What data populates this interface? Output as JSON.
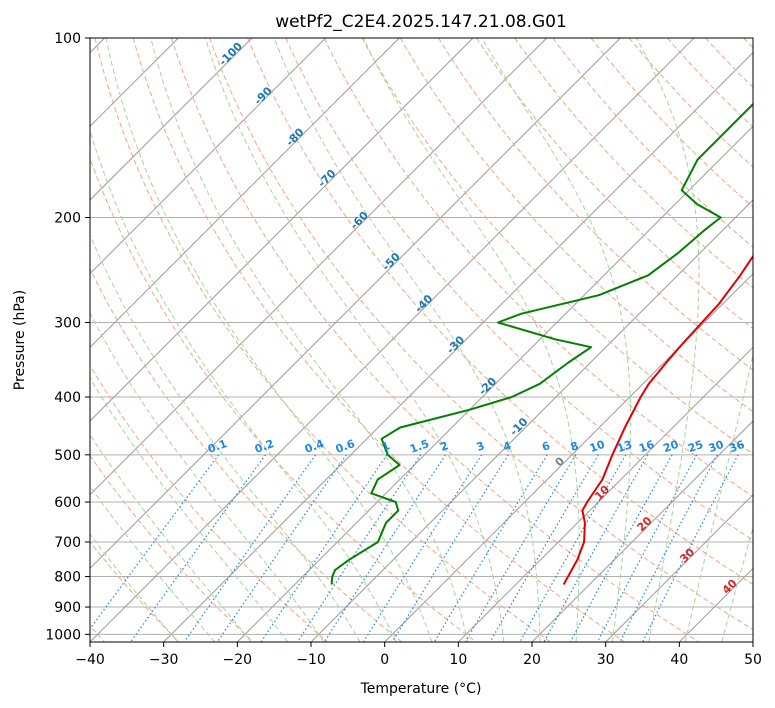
{
  "chart_data": {
    "type": "skew-t",
    "title": "wetPf2_C2E4.2025.147.21.08.G01",
    "xlabel": "Temperature (°C)",
    "ylabel": "Pressure (hPa)",
    "xlim": [
      -40,
      50
    ],
    "ylim": [
      1030,
      100
    ],
    "x_ticks": [
      -40,
      -30,
      -20,
      -10,
      0,
      10,
      20,
      30,
      40,
      50
    ],
    "y_ticks": [
      100,
      200,
      300,
      400,
      500,
      600,
      700,
      800,
      900,
      1000
    ],
    "y_scale": "log",
    "grid": true,
    "series": [
      {
        "color": "#e00000",
        "points": [
          [
            825,
            16.5
          ],
          [
            800,
            16.0
          ],
          [
            750,
            15.0
          ],
          [
            700,
            13.5
          ],
          [
            650,
            11.0
          ],
          [
            620,
            9.0
          ],
          [
            600,
            8.5
          ],
          [
            550,
            7.5
          ],
          [
            500,
            5.5
          ],
          [
            450,
            3.5
          ],
          [
            400,
            1.5
          ],
          [
            380,
            0.8
          ],
          [
            350,
            0.3
          ],
          [
            330,
            0.0
          ],
          [
            300,
            -0.3
          ],
          [
            280,
            -0.5
          ],
          [
            250,
            -1.5
          ],
          [
            220,
            -3.0
          ],
          [
            200,
            -4.5
          ],
          [
            180,
            -6.0
          ],
          [
            160,
            -7.0
          ],
          [
            140,
            -8.5
          ],
          [
            120,
            -10.5
          ],
          [
            100,
            -13.0
          ]
        ]
      },
      {
        "color": "#008000",
        "points": [
          [
            825,
            -15.0
          ],
          [
            800,
            -16.0
          ],
          [
            780,
            -16.5
          ],
          [
            750,
            -16.0
          ],
          [
            700,
            -14.5
          ],
          [
            650,
            -16.0
          ],
          [
            620,
            -16.0
          ],
          [
            600,
            -17.5
          ],
          [
            580,
            -22.0
          ],
          [
            550,
            -23.0
          ],
          [
            520,
            -22.0
          ],
          [
            500,
            -25.0
          ],
          [
            470,
            -28.0
          ],
          [
            450,
            -27.0
          ],
          [
            420,
            -20.0
          ],
          [
            400,
            -16.0
          ],
          [
            380,
            -14.0
          ],
          [
            350,
            -13.0
          ],
          [
            330,
            -12.0
          ],
          [
            320,
            -18.0
          ],
          [
            300,
            -28.0
          ],
          [
            290,
            -26.0
          ],
          [
            270,
            -18.0
          ],
          [
            250,
            -14.0
          ],
          [
            230,
            -13.0
          ],
          [
            210,
            -12.5
          ],
          [
            200,
            -12.0
          ],
          [
            190,
            -17.0
          ],
          [
            180,
            -21.0
          ],
          [
            160,
            -23.0
          ],
          [
            140,
            -23.0
          ],
          [
            125,
            -23.0
          ],
          [
            115,
            -23.0
          ],
          [
            100,
            -23.0
          ]
        ]
      }
    ],
    "isotherm_labels": [
      "-100",
      "-90",
      "-80",
      "-70",
      "-60",
      "-50",
      "-40",
      "-30",
      "-20",
      "-10",
      "0",
      "10",
      "20",
      "30",
      "40"
    ],
    "mixing_ratio_labels": [
      "0.1",
      "0.2",
      "0.4",
      "0.6",
      "1",
      "1.5",
      "2",
      "3",
      "4",
      "6",
      "8",
      "10",
      "13",
      "16",
      "20",
      "25",
      "30",
      "36"
    ],
    "colors": {
      "temperature": "#e00000",
      "dewpoint": "#008000",
      "isotherm_label_cold": "#1f77b4",
      "isotherm_label_warm": "#d62728",
      "isotherm_label_zero": "#7f7f7f",
      "mixing_ratio": "#1e88e5",
      "dry_adiabat": "#f4a582",
      "moist_adiabat": "#a6d49a",
      "skewed_isotherm": "#9a9a9a",
      "isobar": "#b0b0b0"
    }
  }
}
